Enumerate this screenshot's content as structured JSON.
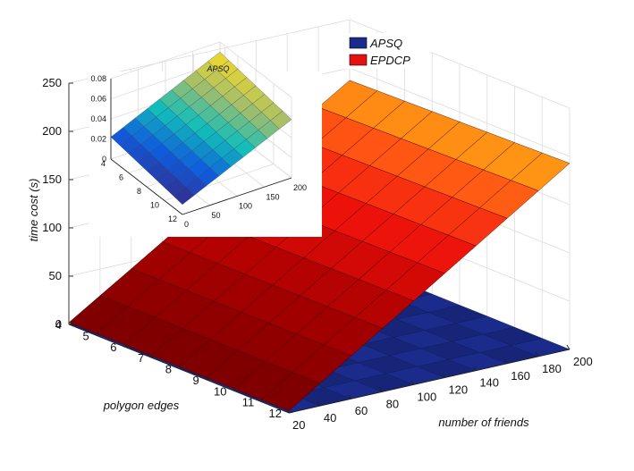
{
  "chart_data": [
    {
      "type": "surface3d",
      "xlabel": "number of friends",
      "ylabel": "polygon edges",
      "zlabel": "time cost (s)",
      "x_ticks": [
        20,
        40,
        60,
        80,
        100,
        120,
        140,
        160,
        180,
        200
      ],
      "y_ticks": [
        4,
        5,
        6,
        7,
        8,
        9,
        10,
        11,
        12
      ],
      "z_ticks": [
        0,
        50,
        100,
        150,
        200,
        250
      ],
      "xlim": [
        20,
        200
      ],
      "ylim": [
        4,
        12
      ],
      "zlim": [
        0,
        250
      ],
      "grid": true,
      "legend": {
        "position": "top-right",
        "entries": [
          "APSQ",
          "EPDCP"
        ]
      },
      "series": [
        {
          "name": "APSQ",
          "color": "#1a2b8c",
          "z_approx": 0.03,
          "z_min": 0.01,
          "z_max": 0.07
        },
        {
          "name": "EPDCP",
          "color": "#d01010",
          "z_at_min_friends": 2,
          "z_at_max_friends": 190
        }
      ]
    },
    {
      "type": "surface3d",
      "title": "APSQ",
      "x_ticks": [
        0,
        50,
        100,
        150,
        200
      ],
      "y_ticks": [
        4,
        6,
        8,
        10,
        12
      ],
      "z_ticks": [
        0,
        0.02,
        0.04,
        0.06,
        0.08
      ],
      "zlim": [
        0,
        0.08
      ],
      "z_at_min": 0.01,
      "z_at_max": 0.07
    }
  ]
}
